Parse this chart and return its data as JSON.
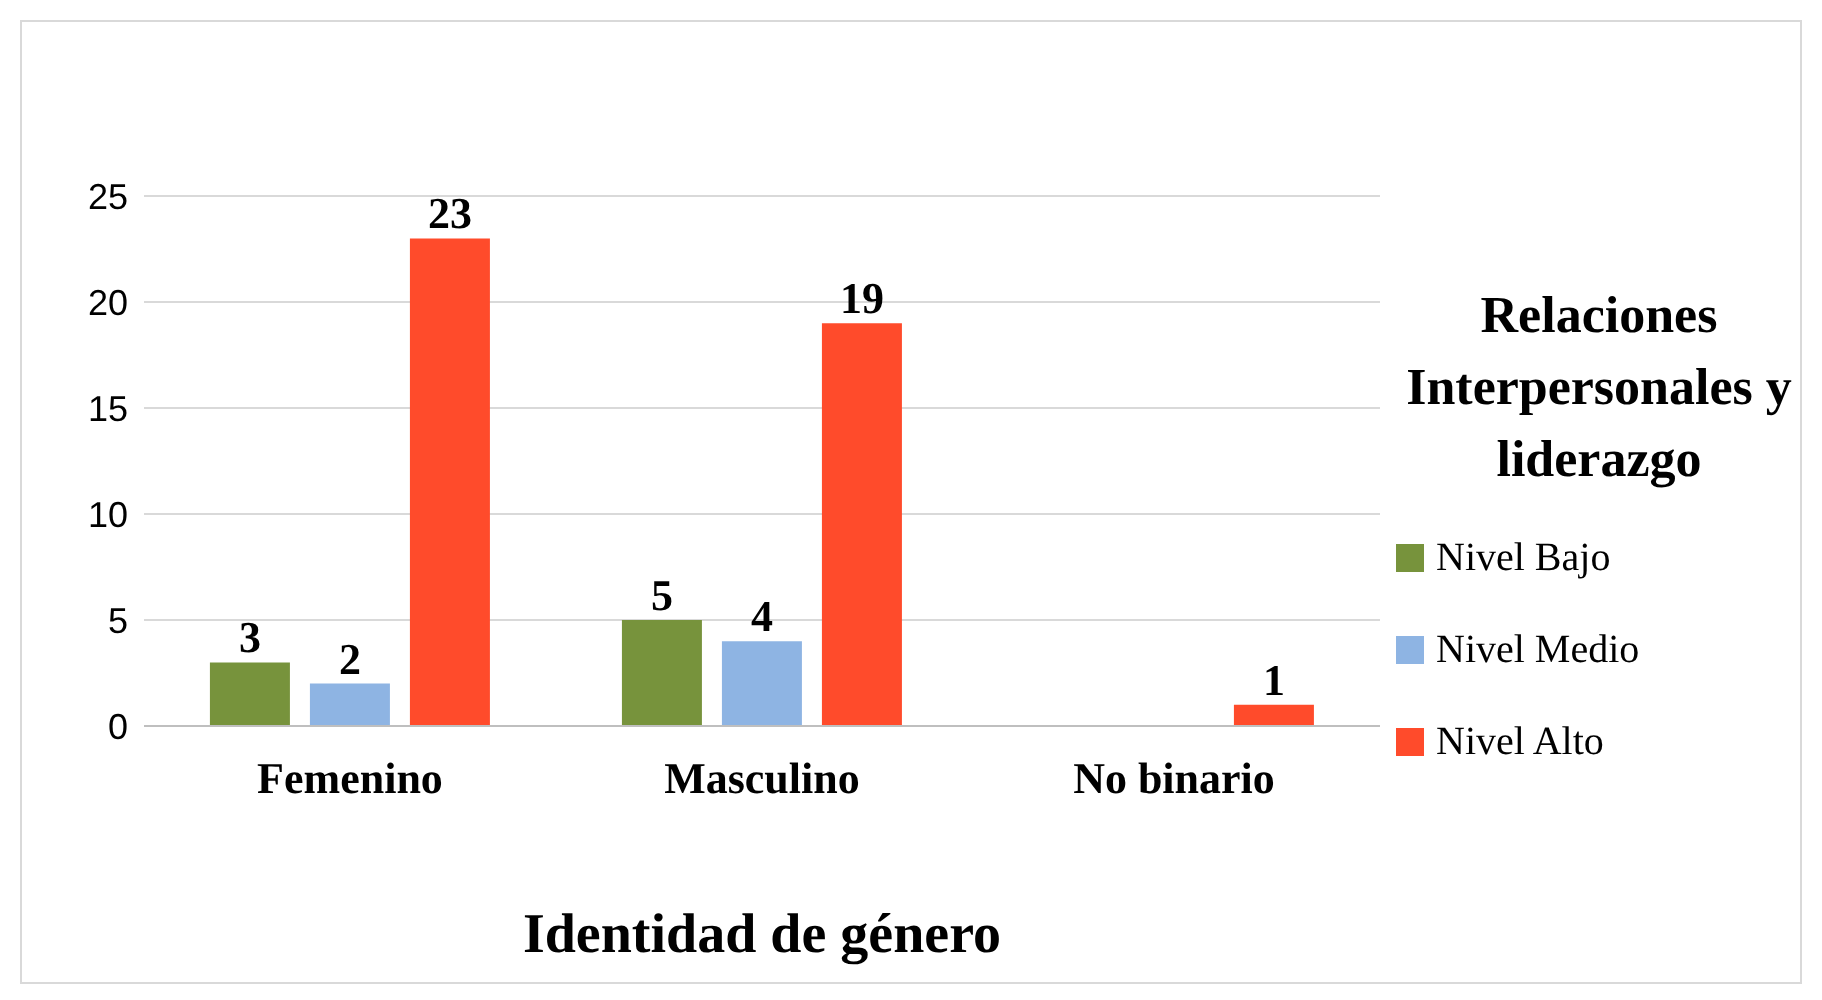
{
  "chart_data": {
    "type": "bar",
    "xlabel": "Identidad de género",
    "legend_title": "Relaciones Interpersonales y liderazgo",
    "categories": [
      "Femenino",
      "Masculino",
      "No binario"
    ],
    "series": [
      {
        "name": "Nivel Bajo",
        "color": "#77933c",
        "values": [
          3,
          5,
          null
        ]
      },
      {
        "name": "Nivel Medio",
        "color": "#8eb4e3",
        "values": [
          2,
          4,
          null
        ]
      },
      {
        "name": "Nivel Alto",
        "color": "#ff4b2b",
        "values": [
          23,
          19,
          1
        ]
      }
    ],
    "ylim": [
      0,
      25
    ],
    "yticks": [
      0,
      5,
      10,
      15,
      20,
      25
    ],
    "grid": "y",
    "legend": "right",
    "data_labels": true
  }
}
